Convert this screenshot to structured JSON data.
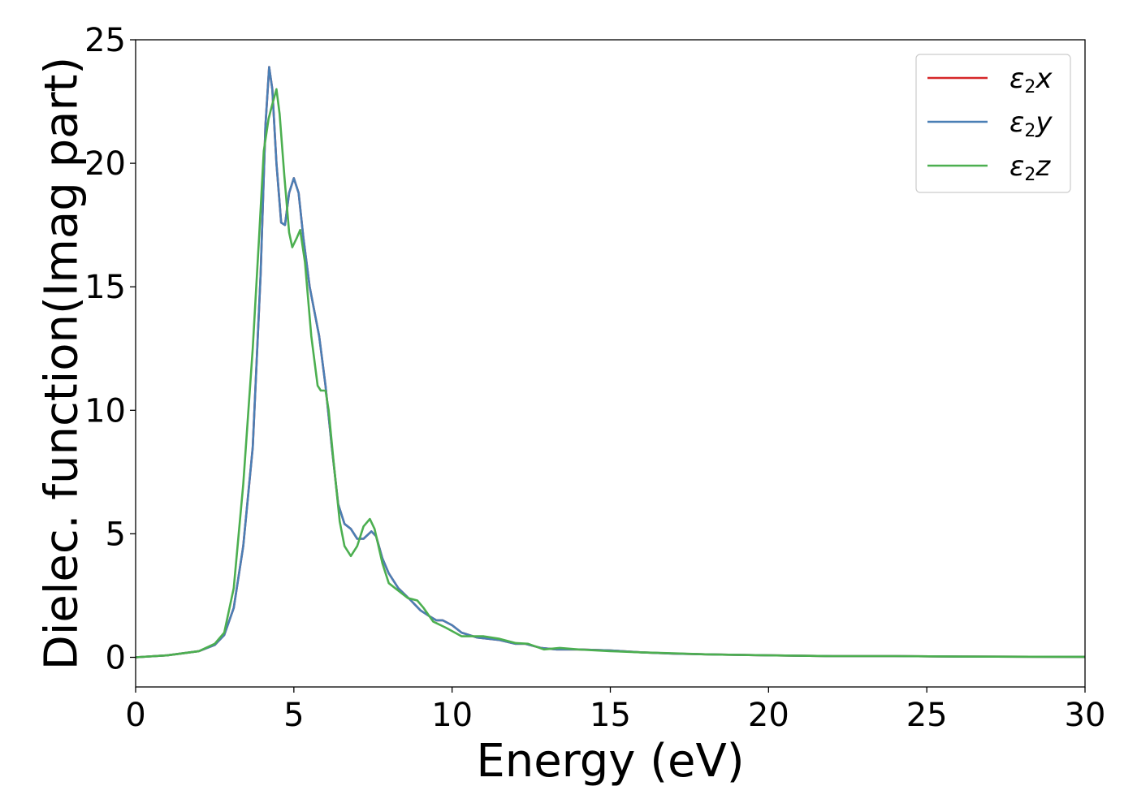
{
  "chart_data": {
    "type": "line",
    "title": "",
    "xlabel": "Energy (eV)",
    "ylabel": "Dielec. function(Imag part)",
    "xlim": [
      0,
      30
    ],
    "ylim": [
      -1.2,
      25
    ],
    "xticks": [
      "0",
      "5",
      "10",
      "15",
      "20",
      "25",
      "30"
    ],
    "yticks": [
      "0",
      "5",
      "10",
      "15",
      "20",
      "25"
    ],
    "grid": false,
    "legend_position": "top-right",
    "series": [
      {
        "name": "ε2x",
        "legend_base": "ε",
        "legend_sub": "2",
        "legend_suffix": "x",
        "color": "#d62728",
        "points": [
          [
            0,
            0
          ],
          [
            1,
            0.08
          ],
          [
            2,
            0.25
          ],
          [
            2.5,
            0.5
          ],
          [
            2.8,
            0.9
          ],
          [
            3.1,
            2.0
          ],
          [
            3.4,
            4.5
          ],
          [
            3.7,
            8.5
          ],
          [
            3.95,
            15.5
          ],
          [
            4.1,
            21.5
          ],
          [
            4.22,
            23.9
          ],
          [
            4.32,
            23.0
          ],
          [
            4.45,
            20.0
          ],
          [
            4.6,
            17.6
          ],
          [
            4.72,
            17.5
          ],
          [
            4.85,
            18.8
          ],
          [
            5.0,
            19.4
          ],
          [
            5.15,
            18.8
          ],
          [
            5.3,
            17.0
          ],
          [
            5.5,
            15.0
          ],
          [
            5.8,
            13.0
          ],
          [
            6.0,
            11.0
          ],
          [
            6.2,
            8.5
          ],
          [
            6.4,
            6.2
          ],
          [
            6.6,
            5.4
          ],
          [
            6.8,
            5.2
          ],
          [
            7.0,
            4.8
          ],
          [
            7.2,
            4.8
          ],
          [
            7.45,
            5.1
          ],
          [
            7.6,
            4.9
          ],
          [
            7.8,
            4.0
          ],
          [
            8.0,
            3.4
          ],
          [
            8.3,
            2.8
          ],
          [
            8.7,
            2.3
          ],
          [
            9.0,
            1.9
          ],
          [
            9.3,
            1.65
          ],
          [
            9.5,
            1.5
          ],
          [
            9.7,
            1.5
          ],
          [
            10.0,
            1.3
          ],
          [
            10.3,
            1.0
          ],
          [
            10.8,
            0.8
          ],
          [
            11.5,
            0.7
          ],
          [
            12.0,
            0.55
          ],
          [
            12.3,
            0.55
          ],
          [
            12.8,
            0.38
          ],
          [
            13.3,
            0.32
          ],
          [
            14.0,
            0.32
          ],
          [
            15.0,
            0.28
          ],
          [
            16.0,
            0.2
          ],
          [
            17.0,
            0.15
          ],
          [
            18.0,
            0.12
          ],
          [
            20.0,
            0.08
          ],
          [
            22.0,
            0.05
          ],
          [
            24.0,
            0.05
          ],
          [
            26.0,
            0.03
          ],
          [
            30.0,
            0.02
          ]
        ]
      },
      {
        "name": "ε2y",
        "legend_base": "ε",
        "legend_sub": "2",
        "legend_suffix": "y",
        "color": "#4a7fb5",
        "points": [
          [
            0,
            0
          ],
          [
            1,
            0.08
          ],
          [
            2,
            0.25
          ],
          [
            2.5,
            0.5
          ],
          [
            2.8,
            0.9
          ],
          [
            3.1,
            2.0
          ],
          [
            3.4,
            4.5
          ],
          [
            3.7,
            8.5
          ],
          [
            3.95,
            15.5
          ],
          [
            4.1,
            21.5
          ],
          [
            4.22,
            23.9
          ],
          [
            4.32,
            23.0
          ],
          [
            4.45,
            20.0
          ],
          [
            4.6,
            17.6
          ],
          [
            4.72,
            17.5
          ],
          [
            4.85,
            18.8
          ],
          [
            5.0,
            19.4
          ],
          [
            5.15,
            18.8
          ],
          [
            5.3,
            17.0
          ],
          [
            5.5,
            15.0
          ],
          [
            5.8,
            13.0
          ],
          [
            6.0,
            11.0
          ],
          [
            6.2,
            8.5
          ],
          [
            6.4,
            6.2
          ],
          [
            6.6,
            5.4
          ],
          [
            6.8,
            5.2
          ],
          [
            7.0,
            4.8
          ],
          [
            7.2,
            4.8
          ],
          [
            7.45,
            5.1
          ],
          [
            7.6,
            4.9
          ],
          [
            7.8,
            4.0
          ],
          [
            8.0,
            3.4
          ],
          [
            8.3,
            2.8
          ],
          [
            8.7,
            2.3
          ],
          [
            9.0,
            1.9
          ],
          [
            9.3,
            1.65
          ],
          [
            9.5,
            1.5
          ],
          [
            9.7,
            1.5
          ],
          [
            10.0,
            1.3
          ],
          [
            10.3,
            1.0
          ],
          [
            10.8,
            0.8
          ],
          [
            11.5,
            0.7
          ],
          [
            12.0,
            0.55
          ],
          [
            12.3,
            0.55
          ],
          [
            12.8,
            0.38
          ],
          [
            13.3,
            0.32
          ],
          [
            14.0,
            0.32
          ],
          [
            15.0,
            0.28
          ],
          [
            16.0,
            0.2
          ],
          [
            17.0,
            0.15
          ],
          [
            18.0,
            0.12
          ],
          [
            20.0,
            0.08
          ],
          [
            22.0,
            0.05
          ],
          [
            24.0,
            0.05
          ],
          [
            26.0,
            0.03
          ],
          [
            30.0,
            0.02
          ]
        ]
      },
      {
        "name": "ε2z",
        "legend_base": "ε",
        "legend_sub": "2",
        "legend_suffix": "z",
        "color": "#4caf50",
        "points": [
          [
            0,
            0
          ],
          [
            1,
            0.08
          ],
          [
            2,
            0.25
          ],
          [
            2.5,
            0.55
          ],
          [
            2.8,
            1.0
          ],
          [
            3.1,
            2.8
          ],
          [
            3.4,
            7.0
          ],
          [
            3.7,
            12.5
          ],
          [
            3.9,
            17.0
          ],
          [
            4.05,
            20.5
          ],
          [
            4.2,
            21.8
          ],
          [
            4.3,
            22.3
          ],
          [
            4.45,
            23.0
          ],
          [
            4.55,
            22.0
          ],
          [
            4.7,
            19.5
          ],
          [
            4.85,
            17.2
          ],
          [
            4.95,
            16.6
          ],
          [
            5.1,
            17.0
          ],
          [
            5.2,
            17.3
          ],
          [
            5.35,
            16.0
          ],
          [
            5.55,
            13.0
          ],
          [
            5.75,
            11.0
          ],
          [
            5.85,
            10.8
          ],
          [
            6.0,
            10.8
          ],
          [
            6.1,
            10.0
          ],
          [
            6.25,
            8.0
          ],
          [
            6.45,
            5.5
          ],
          [
            6.6,
            4.5
          ],
          [
            6.8,
            4.1
          ],
          [
            7.0,
            4.5
          ],
          [
            7.2,
            5.3
          ],
          [
            7.4,
            5.6
          ],
          [
            7.55,
            5.2
          ],
          [
            7.8,
            3.8
          ],
          [
            8.0,
            3.0
          ],
          [
            8.3,
            2.7
          ],
          [
            8.6,
            2.4
          ],
          [
            8.9,
            2.3
          ],
          [
            9.1,
            2.0
          ],
          [
            9.4,
            1.45
          ],
          [
            9.8,
            1.2
          ],
          [
            10.3,
            0.85
          ],
          [
            11.0,
            0.85
          ],
          [
            11.5,
            0.75
          ],
          [
            12.0,
            0.58
          ],
          [
            12.4,
            0.55
          ],
          [
            12.9,
            0.32
          ],
          [
            13.4,
            0.38
          ],
          [
            14.0,
            0.32
          ],
          [
            15.0,
            0.25
          ],
          [
            16.0,
            0.2
          ],
          [
            17.0,
            0.16
          ],
          [
            18.0,
            0.12
          ],
          [
            20.0,
            0.08
          ],
          [
            22.0,
            0.05
          ],
          [
            24.0,
            0.05
          ],
          [
            26.0,
            0.03
          ],
          [
            30.0,
            0.02
          ]
        ]
      }
    ]
  }
}
